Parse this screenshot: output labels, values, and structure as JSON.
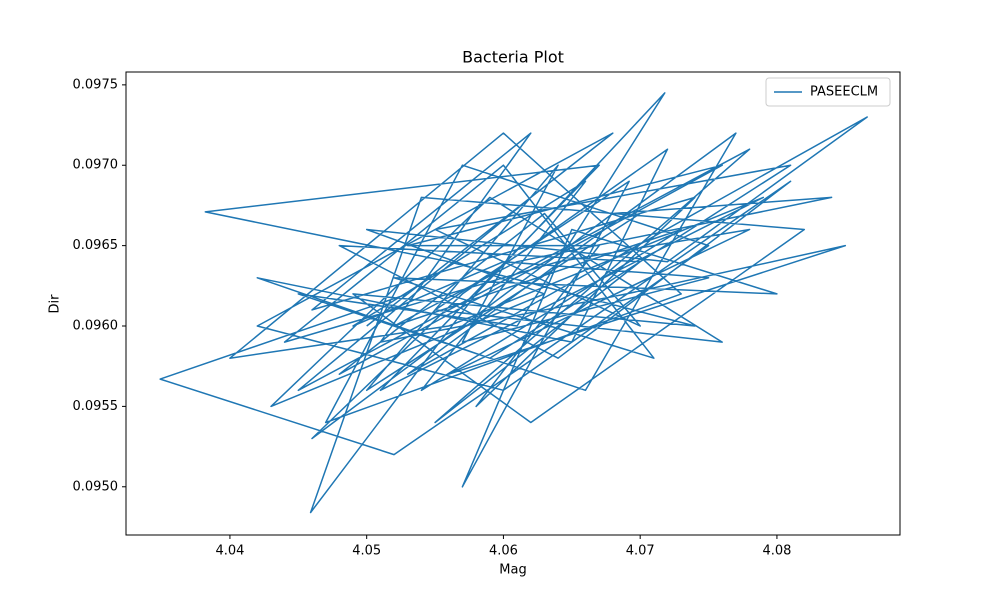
{
  "chart_data": {
    "type": "line",
    "title": "Bacteria Plot",
    "x_label": "Mag",
    "y_label": "Dir",
    "xlim": [
      4.0324,
      4.089
    ],
    "ylim": [
      0.0947,
      0.09758
    ],
    "xticks": [
      4.04,
      4.05,
      4.06,
      4.07,
      4.08
    ],
    "yticks": [
      {
        "value": 0.095,
        "label": "0.0950"
      },
      {
        "value": 0.0955,
        "label": "0.0955"
      },
      {
        "value": 0.096,
        "label": "0.0960"
      },
      {
        "value": 0.0965,
        "label": "0.0965"
      },
      {
        "value": 0.097,
        "label": "0.0970"
      },
      {
        "value": 0.0975,
        "label": "0.0975"
      }
    ],
    "legend_position": "upper-right",
    "grid": false,
    "series": [
      {
        "name": "PASEECLM",
        "color": "#1f77b4",
        "x": [
          4.05,
          4.062,
          4.045,
          4.078,
          4.055,
          4.07,
          4.048,
          4.064,
          4.081,
          4.052,
          4.0349,
          4.053,
          4.068,
          4.042,
          4.06,
          4.075,
          4.057,
          4.047,
          4.073,
          4.06,
          4.04,
          4.056,
          4.079,
          4.051,
          4.067,
          4.0382,
          4.056,
          4.074,
          4.049,
          4.062,
          4.082,
          4.054,
          4.0459,
          4.058,
          4.0718,
          4.061,
          4.045,
          4.066,
          4.077,
          4.053,
          4.0866,
          4.072,
          4.05,
          4.063,
          4.043,
          4.059,
          4.076,
          4.055,
          4.0692,
          4.057,
          4.065,
          4.08,
          4.052,
          4.071,
          4.06,
          4.044,
          4.064,
          4.078,
          4.056,
          4.085,
          4.069,
          4.051,
          4.062,
          4.046,
          4.074,
          4.058,
          4.067,
          4.053,
          4.076,
          4.048,
          4.063,
          4.07,
          4.055,
          4.081,
          4.059,
          4.042,
          4.065,
          4.072,
          4.057,
          4.046,
          4.068,
          4.084,
          4.061,
          4.052,
          4.073,
          4.054,
          4.066,
          4.049,
          4.06,
          4.075,
          4.057,
          4.064,
          4.05,
          4.07
        ],
        "values": [
          0.096,
          0.0968,
          0.0956,
          0.0971,
          0.0954,
          0.0964,
          0.0965,
          0.0958,
          0.0969,
          0.0952,
          0.09567,
          0.0962,
          0.0972,
          0.096,
          0.0956,
          0.0965,
          0.097,
          0.0954,
          0.0962,
          0.0972,
          0.0958,
          0.096,
          0.0968,
          0.0956,
          0.097,
          0.09671,
          0.0964,
          0.096,
          0.0962,
          0.0954,
          0.0966,
          0.0968,
          0.09484,
          0.0962,
          0.09745,
          0.096,
          0.0962,
          0.0956,
          0.0972,
          0.0957,
          0.0973,
          0.0964,
          0.0966,
          0.0962,
          0.0955,
          0.0968,
          0.0959,
          0.0961,
          0.0969,
          0.095,
          0.0966,
          0.0962,
          0.0963,
          0.0958,
          0.097,
          0.0959,
          0.0964,
          0.0966,
          0.0957,
          0.0965,
          0.0962,
          0.0959,
          0.0972,
          0.0961,
          0.0968,
          0.0955,
          0.0965,
          0.0965,
          0.097,
          0.0957,
          0.0967,
          0.096,
          0.0966,
          0.097,
          0.0958,
          0.0963,
          0.0959,
          0.0971,
          0.0962,
          0.0953,
          0.0967,
          0.0968,
          0.0964,
          0.096,
          0.0966,
          0.0956,
          0.0969,
          0.096,
          0.0964,
          0.0963,
          0.0959,
          0.097,
          0.0956,
          0.0967
        ]
      }
    ]
  }
}
